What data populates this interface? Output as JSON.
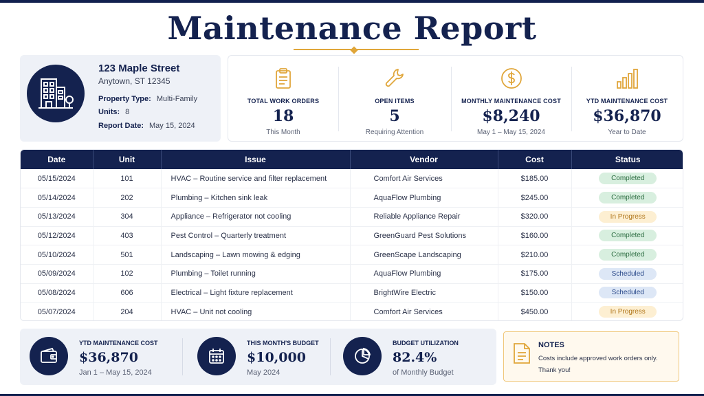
{
  "report": {
    "title": "Maintenance Report"
  },
  "property": {
    "street": "123 Maple Street",
    "city": "Anytown, ST 12345",
    "type_label": "Property Type:",
    "type_value": "Multi-Family",
    "units_label": "Units:",
    "units_value": "8",
    "date_label": "Report Date:",
    "date_value": "May 15, 2024",
    "icon": "building-icon"
  },
  "stats": [
    {
      "label": "TOTAL WORK ORDERS",
      "value": "18",
      "sub": "This Month",
      "icon": "clipboard-icon"
    },
    {
      "label": "OPEN ITEMS",
      "value": "5",
      "sub": "Requiring Attention",
      "icon": "wrench-icon"
    },
    {
      "label": "MONTHLY MAINTENANCE COST",
      "value": "$8,240",
      "sub": "May 1 – May 15, 2024",
      "icon": "dollar-icon"
    },
    {
      "label": "YTD MAINTENANCE COST",
      "value": "$36,870",
      "sub": "Year to Date",
      "icon": "bar-chart-icon"
    }
  ],
  "table": {
    "headers": [
      "Date",
      "Unit",
      "Issue",
      "Vendor",
      "Cost",
      "Status"
    ],
    "rows": [
      {
        "date": "05/15/2024",
        "unit": "101",
        "issue": "HVAC – Routine service and filter replacement",
        "vendor": "Comfort Air Services",
        "cost": "$185.00",
        "status": "Completed",
        "status_kind": "completed"
      },
      {
        "date": "05/14/2024",
        "unit": "202",
        "issue": "Plumbing – Kitchen sink leak",
        "vendor": "AquaFlow Plumbing",
        "cost": "$245.00",
        "status": "Completed",
        "status_kind": "completed"
      },
      {
        "date": "05/13/2024",
        "unit": "304",
        "issue": "Appliance – Refrigerator not cooling",
        "vendor": "Reliable Appliance Repair",
        "cost": "$320.00",
        "status": "In Progress",
        "status_kind": "progress"
      },
      {
        "date": "05/12/2024",
        "unit": "403",
        "issue": "Pest Control – Quarterly treatment",
        "vendor": "GreenGuard Pest Solutions",
        "cost": "$160.00",
        "status": "Completed",
        "status_kind": "completed"
      },
      {
        "date": "05/10/2024",
        "unit": "501",
        "issue": "Landscaping – Lawn mowing & edging",
        "vendor": "GreenScape Landscaping",
        "cost": "$210.00",
        "status": "Completed",
        "status_kind": "completed"
      },
      {
        "date": "05/09/2024",
        "unit": "102",
        "issue": "Plumbing – Toilet running",
        "vendor": "AquaFlow Plumbing",
        "cost": "$175.00",
        "status": "Scheduled",
        "status_kind": "scheduled"
      },
      {
        "date": "05/08/2024",
        "unit": "606",
        "issue": "Electrical – Light fixture replacement",
        "vendor": "BrightWire Electric",
        "cost": "$150.00",
        "status": "Scheduled",
        "status_kind": "scheduled"
      },
      {
        "date": "05/07/2024",
        "unit": "204",
        "issue": "HVAC – Unit not cooling",
        "vendor": "Comfort Air Services",
        "cost": "$450.00",
        "status": "In Progress",
        "status_kind": "progress"
      }
    ]
  },
  "summary": [
    {
      "label": "YTD MAINTENANCE COST",
      "value": "$36,870",
      "sub": "Jan 1 – May 15, 2024",
      "icon": "wallet-icon"
    },
    {
      "label": "THIS MONTH'S BUDGET",
      "value": "$10,000",
      "sub": "May 2024",
      "icon": "calendar-icon"
    },
    {
      "label": "BUDGET UTILIZATION",
      "value": "82.4%",
      "sub": "of Monthly Budget",
      "icon": "pie-chart-icon"
    }
  ],
  "notes": {
    "title": "NOTES",
    "line1": "Costs include approved work orders only.",
    "line2": "Thank you!",
    "icon": "document-icon"
  },
  "colors": {
    "navy": "#14224f",
    "gold": "#e0a63a",
    "completed_bg": "#d8efdf",
    "progress_bg": "#fdefd2",
    "scheduled_bg": "#dde7f6"
  }
}
